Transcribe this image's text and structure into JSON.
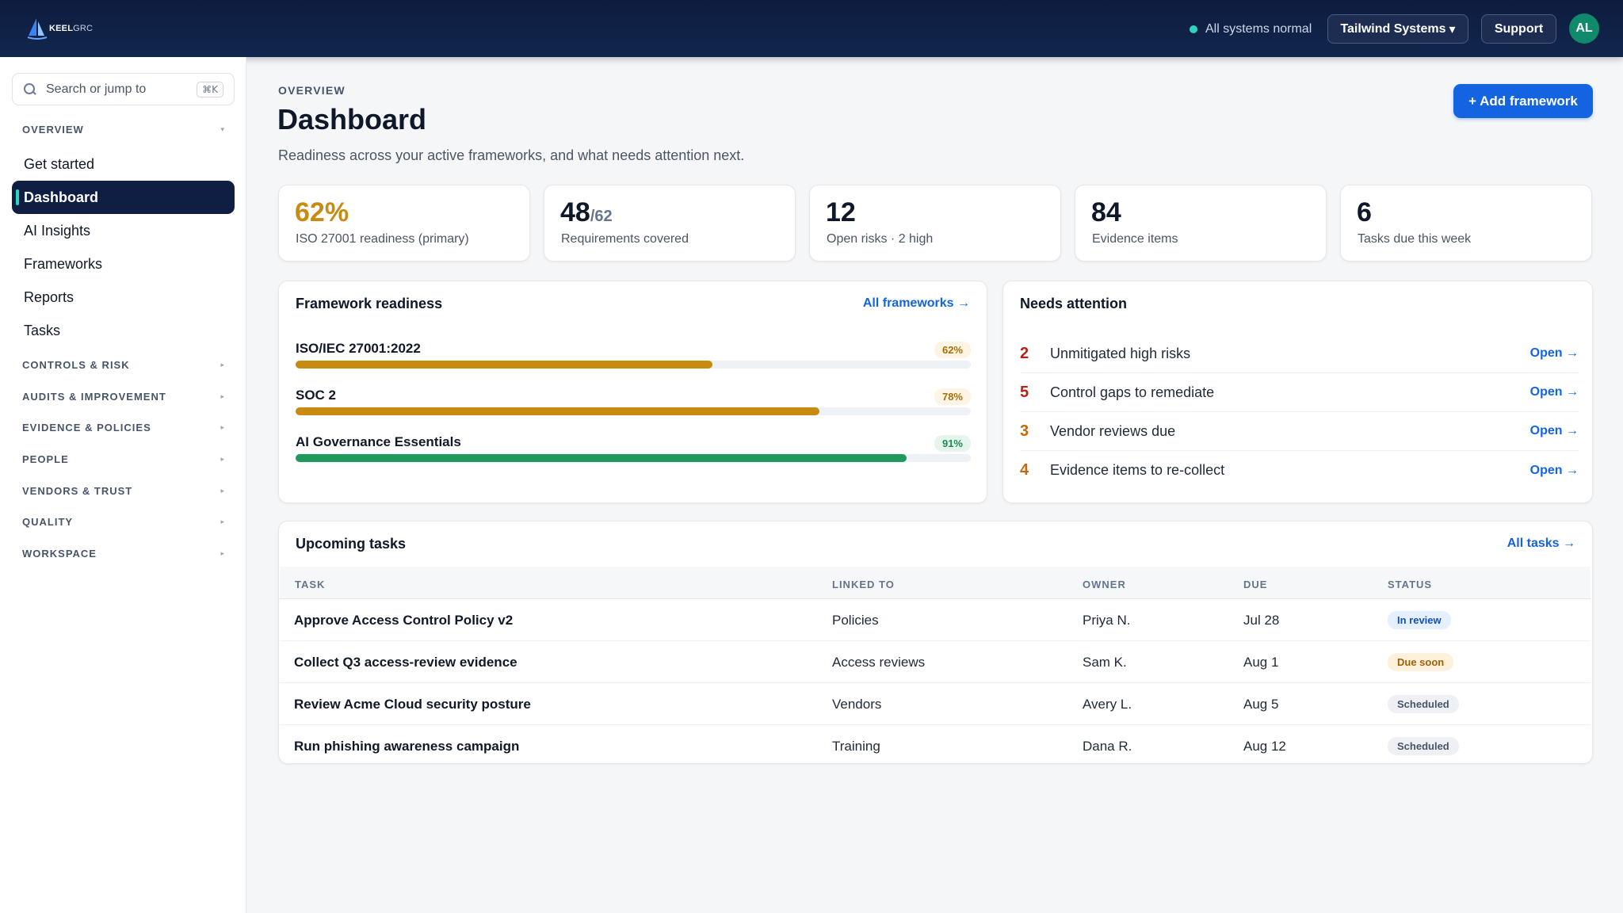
{
  "brand": {
    "name_bold": "KEEL",
    "name_light": "GRC"
  },
  "topbar": {
    "status_text": "All systems normal",
    "org_label": "Tailwind Systems",
    "org_caret": "▾",
    "support_label": "Support",
    "avatar_initials": "AL"
  },
  "sidebar": {
    "search_placeholder": "Search or jump to",
    "search_shortcut": "⌘K",
    "overview_label": "OVERVIEW",
    "overview_caret": "▾",
    "items": [
      {
        "label": "Get started"
      },
      {
        "label": "Dashboard"
      },
      {
        "label": "AI Insights"
      },
      {
        "label": "Frameworks"
      },
      {
        "label": "Reports"
      },
      {
        "label": "Tasks"
      }
    ],
    "sections": [
      {
        "label": "CONTROLS & RISK",
        "caret": "▸"
      },
      {
        "label": "AUDITS & IMPROVEMENT",
        "caret": "▸"
      },
      {
        "label": "EVIDENCE & POLICIES",
        "caret": "▸"
      },
      {
        "label": "PEOPLE",
        "caret": "▸"
      },
      {
        "label": "VENDORS & TRUST",
        "caret": "▸"
      },
      {
        "label": "QUALITY",
        "caret": "▸"
      },
      {
        "label": "WORKSPACE",
        "caret": "▸"
      }
    ]
  },
  "header": {
    "eyebrow": "OVERVIEW",
    "title": "Dashboard",
    "subtitle": "Readiness across your active frameworks, and what needs attention next.",
    "add_button": "+ Add framework"
  },
  "kpis": [
    {
      "value": "62%",
      "label": "ISO 27001 readiness (primary)"
    },
    {
      "value": "48",
      "suffix": "/62",
      "label": "Requirements covered"
    },
    {
      "value": "12",
      "label": "Open risks · 2 high"
    },
    {
      "value": "84",
      "label": "Evidence items"
    },
    {
      "value": "6",
      "label": "Tasks due this week"
    }
  ],
  "readiness": {
    "title": "Framework readiness",
    "link": "All frameworks →",
    "frameworks": [
      {
        "name": "ISO/IEC 27001:2022",
        "pct_label": "62%",
        "progress": 0.62,
        "color": "#c98a12",
        "pill_bg": "#fdf4e3",
        "pill_fg": "#a86f0a"
      },
      {
        "name": "SOC 2",
        "pct_label": "78%",
        "progress": 0.78,
        "color": "#c98a12",
        "pill_bg": "#fdf4e3",
        "pill_fg": "#a86f0a"
      },
      {
        "name": "AI Governance Essentials",
        "pct_label": "91%",
        "progress": 0.91,
        "color": "#1e9a5c",
        "pill_bg": "#e6f5ec",
        "pill_fg": "#1e8a52"
      }
    ]
  },
  "attention": {
    "title": "Needs attention",
    "items": [
      {
        "count": "2",
        "text": "Unmitigated high risks",
        "action": "Open →",
        "color": "#b42318"
      },
      {
        "count": "5",
        "text": "Control gaps to remediate",
        "action": "Open →",
        "color": "#b42318"
      },
      {
        "count": "3",
        "text": "Vendor reviews due",
        "action": "Open →",
        "color": "#c26a0a"
      },
      {
        "count": "4",
        "text": "Evidence items to re-collect",
        "action": "Open →",
        "color": "#c26a0a"
      }
    ]
  },
  "tasks": {
    "title": "Upcoming tasks",
    "link": "All tasks →",
    "columns": [
      "TASK",
      "LINKED TO",
      "OWNER",
      "DUE",
      "STATUS"
    ],
    "rows": [
      {
        "task": "Approve Access Control Policy v2",
        "linked": "Policies",
        "owner": "Priya N.",
        "due": "Jul 28",
        "status": "In review",
        "status_bg": "#e6effd",
        "status_fg": "#1551b5"
      },
      {
        "task": "Collect Q3 access-review evidence",
        "linked": "Access reviews",
        "owner": "Sam K.",
        "due": "Aug 1",
        "status": "Due soon",
        "status_bg": "#fdf1dc",
        "status_fg": "#a35f07"
      },
      {
        "task": "Review Acme Cloud security posture",
        "linked": "Vendors",
        "owner": "Avery L.",
        "due": "Aug 5",
        "status": "Scheduled",
        "status_bg": "#eef0f3",
        "status_fg": "#475569"
      },
      {
        "task": "Run phishing awareness campaign",
        "linked": "Training",
        "owner": "Dana R.",
        "due": "Aug 12",
        "status": "Scheduled",
        "status_bg": "#eef0f3",
        "status_fg": "#475569"
      }
    ]
  },
  "colors": {
    "accent": "#1463e0",
    "nav_active": "#0f1f43",
    "topbar": "#0d1c3f",
    "teal": "#2dd4bf"
  }
}
